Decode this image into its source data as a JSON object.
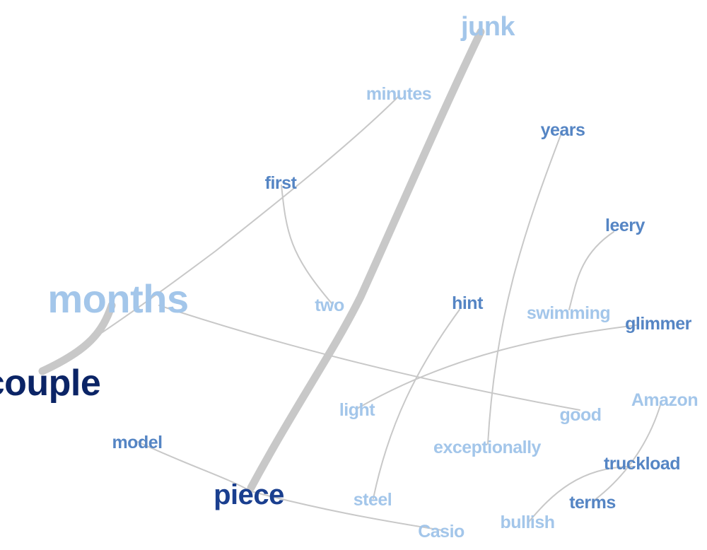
{
  "colors": {
    "edge": "#c8c8c8",
    "light": "#a3c6ea",
    "medium": "#5585c4",
    "dark": "#1a3f8f",
    "darkest": "#0b2466"
  },
  "words": {
    "junk": "junk",
    "minutes": "minutes",
    "years": "years",
    "first": "first",
    "leery": "leery",
    "months": "months",
    "two": "two",
    "hint": "hint",
    "swimming": "swimming",
    "glimmer": "glimmer",
    "couple": "couple",
    "light": "light",
    "good": "good",
    "amazon": "Amazon",
    "model": "model",
    "exceptionally": "exceptionally",
    "truckload": "truckload",
    "piece": "piece",
    "steel": "steel",
    "terms": "terms",
    "bullish": "bullish",
    "casio": "Casio"
  },
  "links": [
    {
      "source": "junk",
      "target": "piece",
      "weight": "strong"
    },
    {
      "source": "months",
      "target": "couple",
      "weight": "strong"
    },
    {
      "source": "months",
      "target": "minutes",
      "weight": "weak"
    },
    {
      "source": "months",
      "target": "good",
      "weight": "weak"
    },
    {
      "source": "first",
      "target": "two",
      "weight": "weak"
    },
    {
      "source": "years",
      "target": "exceptionally",
      "weight": "weak"
    },
    {
      "source": "leery",
      "target": "swimming",
      "weight": "weak"
    },
    {
      "source": "hint",
      "target": "steel",
      "weight": "weak"
    },
    {
      "source": "glimmer",
      "target": "light",
      "weight": "weak"
    },
    {
      "source": "model",
      "target": "piece",
      "weight": "weak"
    },
    {
      "source": "piece",
      "target": "casio",
      "weight": "weak"
    },
    {
      "source": "amazon",
      "target": "terms",
      "weight": "weak"
    },
    {
      "source": "truckload",
      "target": "bullish",
      "weight": "weak"
    }
  ]
}
